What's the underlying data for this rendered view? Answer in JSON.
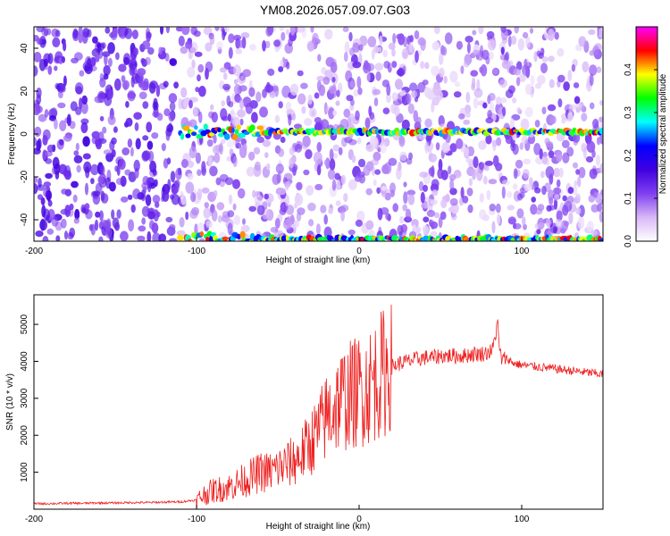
{
  "title": "YM08.2026.057.09.07.G03",
  "chart_data": [
    {
      "type": "heatmap",
      "xlabel": "Height of straight line (km)",
      "ylabel": "Frequency (Hz)",
      "xlim": [
        -200,
        150
      ],
      "ylim": [
        -50,
        50
      ],
      "x_ticks": [
        -200,
        -100,
        0,
        100
      ],
      "y_ticks": [
        -40,
        -20,
        0,
        20,
        40
      ],
      "noise_band_x": [
        -200,
        -110
      ],
      "signal_lines_hz": [
        1,
        -49
      ],
      "signal_start_x": -110,
      "colorbar": {
        "label": "Normalized spectral amplitude",
        "range": [
          0,
          0.5
        ],
        "ticks": [
          "0.0",
          "0.1",
          "0.2",
          "0.3",
          "0.4"
        ],
        "tick_values": [
          0,
          0.1,
          0.2,
          0.3,
          0.4
        ],
        "colors": [
          "#ffffff",
          "#d8b8f8",
          "#8040f0",
          "#4000e0",
          "#0000ff",
          "#00ffff",
          "#00ff00",
          "#ffff00",
          "#ff0000",
          "#ff00ff"
        ]
      }
    },
    {
      "type": "line",
      "xlabel": "Height of straight line (km)",
      "ylabel": "SNR (10 * v/v)",
      "xlim": [
        -200,
        150
      ],
      "ylim": [
        0,
        5800
      ],
      "x_ticks": [
        -200,
        -100,
        0,
        100
      ],
      "y_ticks": [
        1000,
        2000,
        3000,
        4000,
        5000
      ],
      "color": "#ee2020",
      "series": [
        {
          "name": "SNR",
          "x": [
            -200,
            -190,
            -180,
            -170,
            -160,
            -150,
            -140,
            -130,
            -120,
            -110,
            -100,
            -95,
            -90,
            -85,
            -80,
            -75,
            -70,
            -65,
            -60,
            -55,
            -50,
            -45,
            -40,
            -35,
            -30,
            -25,
            -20,
            -15,
            -10,
            -5,
            0,
            5,
            10,
            15,
            20,
            25,
            30,
            35,
            40,
            45,
            50,
            55,
            60,
            65,
            70,
            75,
            80,
            82,
            84,
            85,
            86,
            88,
            90,
            95,
            100,
            110,
            120,
            130,
            140,
            150
          ],
          "y": [
            150,
            150,
            160,
            160,
            170,
            170,
            180,
            180,
            190,
            200,
            250,
            400,
            500,
            550,
            600,
            700,
            800,
            900,
            1000,
            1000,
            1100,
            1200,
            1300,
            1500,
            1800,
            2100,
            2500,
            2800,
            3000,
            3100,
            3200,
            3300,
            3500,
            3700,
            3850,
            3950,
            4000,
            4050,
            4100,
            4100,
            4150,
            4150,
            4150,
            4150,
            4200,
            4200,
            4250,
            4300,
            4700,
            5200,
            4400,
            4000,
            4100,
            3950,
            3900,
            3850,
            3800,
            3750,
            3700,
            3650
          ]
        }
      ]
    }
  ]
}
